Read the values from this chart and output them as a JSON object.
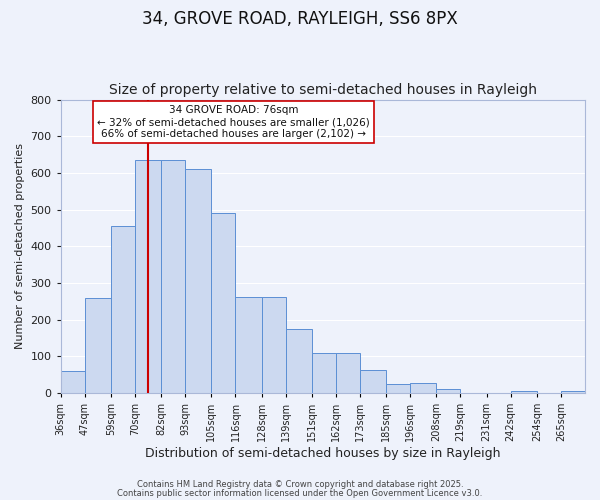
{
  "title": "34, GROVE ROAD, RAYLEIGH, SS6 8PX",
  "subtitle": "Size of property relative to semi-detached houses in Rayleigh",
  "xlabel": "Distribution of semi-detached houses by size in Rayleigh",
  "ylabel": "Number of semi-detached properties",
  "bar_labels": [
    "36sqm",
    "47sqm",
    "59sqm",
    "70sqm",
    "82sqm",
    "93sqm",
    "105sqm",
    "116sqm",
    "128sqm",
    "139sqm",
    "151sqm",
    "162sqm",
    "173sqm",
    "185sqm",
    "196sqm",
    "208sqm",
    "219sqm",
    "231sqm",
    "242sqm",
    "254sqm",
    "265sqm"
  ],
  "bar_values": [
    60,
    258,
    456,
    634,
    634,
    610,
    490,
    262,
    262,
    175,
    110,
    110,
    63,
    25,
    28,
    10,
    0,
    0,
    5,
    0,
    5
  ],
  "bar_color": "#ccd9f0",
  "bar_edge_color": "#5b8fd4",
  "background_color": "#eef2fb",
  "grid_color": "#ffffff",
  "annotation_box_text": "34 GROVE ROAD: 76sqm\n← 32% of semi-detached houses are smaller (1,026)\n66% of semi-detached houses are larger (2,102) →",
  "property_line_x": 76,
  "property_line_color": "#cc0000",
  "ylim": [
    0,
    800
  ],
  "yticks": [
    0,
    100,
    200,
    300,
    400,
    500,
    600,
    700,
    800
  ],
  "footer_line1": "Contains HM Land Registry data © Crown copyright and database right 2025.",
  "footer_line2": "Contains public sector information licensed under the Open Government Licence v3.0.",
  "title_fontsize": 12,
  "subtitle_fontsize": 10,
  "bin_edges": [
    36,
    47,
    59,
    70,
    82,
    93,
    105,
    116,
    128,
    139,
    151,
    162,
    173,
    185,
    196,
    208,
    219,
    231,
    242,
    254,
    265,
    276
  ]
}
